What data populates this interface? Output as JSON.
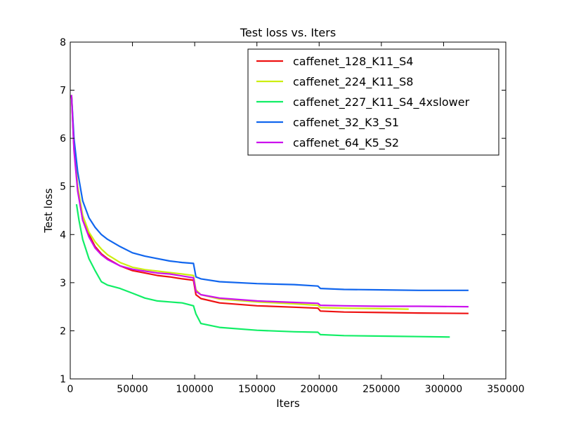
{
  "chart_data": {
    "type": "line",
    "title": "Test loss  vs. Iters",
    "xlabel": "Iters",
    "ylabel": "Test loss",
    "xlim": [
      0,
      350000
    ],
    "ylim": [
      1,
      8
    ],
    "xticks": [
      0,
      50000,
      100000,
      150000,
      200000,
      250000,
      300000,
      350000
    ],
    "yticks": [
      1,
      2,
      3,
      4,
      5,
      6,
      7,
      8
    ],
    "grid": false,
    "legend_position": "top-right",
    "series": [
      {
        "name": "caffenet_128_K11_S4",
        "color": "#ee1111",
        "x": [
          1000,
          3000,
          6000,
          10000,
          15000,
          20000,
          25000,
          30000,
          40000,
          50000,
          60000,
          70000,
          80000,
          90000,
          99000,
          101000,
          105000,
          120000,
          150000,
          180000,
          199000,
          201000,
          220000,
          250000,
          280000,
          320000
        ],
        "y": [
          6.9,
          5.8,
          4.95,
          4.3,
          4.0,
          3.75,
          3.6,
          3.5,
          3.35,
          3.25,
          3.2,
          3.15,
          3.12,
          3.08,
          3.05,
          2.75,
          2.67,
          2.58,
          2.52,
          2.49,
          2.47,
          2.41,
          2.39,
          2.38,
          2.37,
          2.36
        ]
      },
      {
        "name": "caffenet_224_K11_S8",
        "color": "#ccee11",
        "x": [
          1000,
          3000,
          6000,
          10000,
          15000,
          20000,
          25000,
          30000,
          40000,
          50000,
          60000,
          70000,
          80000,
          90000,
          99000,
          101000,
          105000,
          120000,
          150000,
          180000,
          199000,
          201000,
          220000,
          250000,
          272000
        ],
        "y": [
          6.9,
          5.9,
          5.0,
          4.4,
          4.05,
          3.85,
          3.7,
          3.58,
          3.42,
          3.32,
          3.27,
          3.24,
          3.21,
          3.18,
          3.15,
          2.85,
          2.75,
          2.66,
          2.6,
          2.56,
          2.53,
          2.48,
          2.47,
          2.46,
          2.45
        ]
      },
      {
        "name": "caffenet_227_K11_S4_4xslower",
        "color": "#11ee66",
        "x": [
          5000,
          7000,
          10000,
          15000,
          20000,
          25000,
          30000,
          40000,
          50000,
          60000,
          70000,
          80000,
          90000,
          99000,
          101000,
          105000,
          120000,
          150000,
          180000,
          199000,
          201000,
          220000,
          250000,
          280000,
          305000
        ],
        "y": [
          4.63,
          4.3,
          3.9,
          3.5,
          3.25,
          3.02,
          2.95,
          2.88,
          2.78,
          2.68,
          2.62,
          2.6,
          2.58,
          2.52,
          2.35,
          2.15,
          2.07,
          2.01,
          1.98,
          1.97,
          1.92,
          1.9,
          1.89,
          1.88,
          1.87
        ]
      },
      {
        "name": "caffenet_32_K3_S1",
        "color": "#1166ee",
        "x": [
          1000,
          3000,
          6000,
          10000,
          15000,
          20000,
          25000,
          30000,
          40000,
          50000,
          60000,
          70000,
          80000,
          90000,
          99000,
          101000,
          105000,
          120000,
          150000,
          180000,
          199000,
          201000,
          220000,
          250000,
          280000,
          320000
        ],
        "y": [
          6.9,
          6.0,
          5.3,
          4.7,
          4.35,
          4.15,
          4.0,
          3.9,
          3.75,
          3.62,
          3.55,
          3.5,
          3.45,
          3.42,
          3.4,
          3.12,
          3.08,
          3.02,
          2.98,
          2.96,
          2.93,
          2.88,
          2.86,
          2.85,
          2.84,
          2.84
        ]
      },
      {
        "name": "caffenet_64_K5_S2",
        "color": "#cc11ee",
        "x": [
          1000,
          3000,
          6000,
          10000,
          15000,
          20000,
          25000,
          30000,
          40000,
          50000,
          60000,
          70000,
          80000,
          90000,
          99000,
          101000,
          105000,
          120000,
          150000,
          180000,
          199000,
          201000,
          220000,
          250000,
          280000,
          320000
        ],
        "y": [
          6.9,
          5.75,
          4.9,
          4.3,
          3.95,
          3.72,
          3.58,
          3.48,
          3.35,
          3.28,
          3.24,
          3.2,
          3.18,
          3.14,
          3.1,
          2.82,
          2.75,
          2.68,
          2.62,
          2.59,
          2.57,
          2.53,
          2.52,
          2.51,
          2.51,
          2.5
        ]
      }
    ]
  }
}
